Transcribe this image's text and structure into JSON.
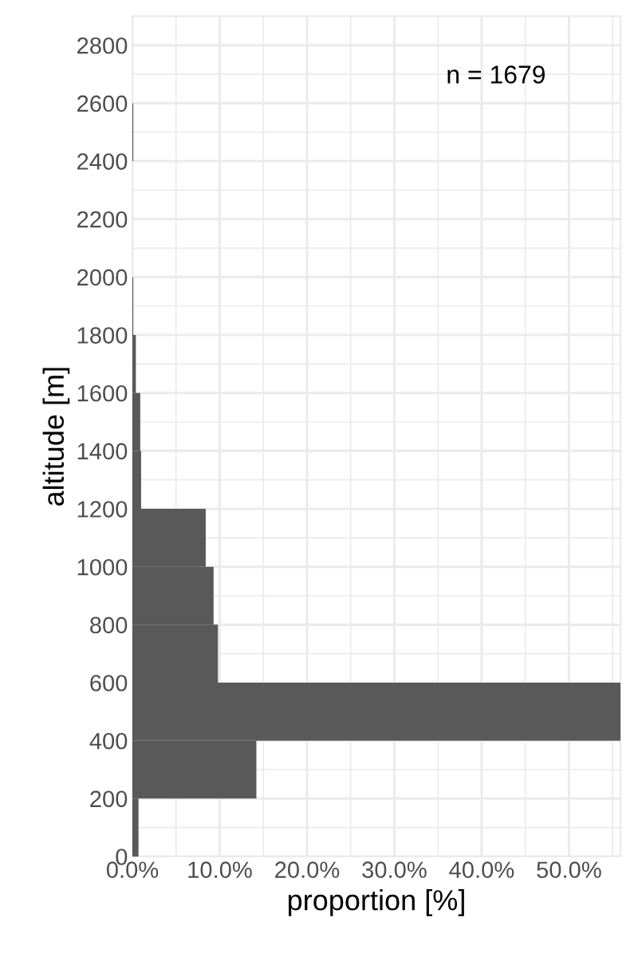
{
  "chart_data": {
    "type": "histogram",
    "orientation": "horizontal",
    "xlabel": "proportion [%]",
    "ylabel": "altitude [m]",
    "bins": [
      0,
      200,
      400,
      600,
      800,
      1000,
      1200,
      1400,
      1600,
      1800,
      2000,
      2200,
      2400,
      2600
    ],
    "values": [
      0.7,
      14.2,
      55.9,
      9.8,
      9.3,
      8.4,
      1.0,
      0.9,
      0.4,
      0.1,
      0,
      0,
      0.1
    ],
    "color": "#595959",
    "xlim": [
      0,
      55.9
    ],
    "xticks": [
      {
        "value": 0,
        "label": "0.0%"
      },
      {
        "value": 10,
        "label": "10.0%"
      },
      {
        "value": 20,
        "label": "20.0%"
      },
      {
        "value": 30,
        "label": "30.0%"
      },
      {
        "value": 40,
        "label": "40.0%"
      },
      {
        "value": 50,
        "label": "50.0%"
      }
    ],
    "ylim": [
      0,
      2900
    ],
    "yticks": [
      0,
      200,
      400,
      600,
      800,
      1000,
      1200,
      1400,
      1600,
      1800,
      2000,
      2200,
      2400,
      2600,
      2800
    ],
    "grid": true,
    "annotations": [
      "n = 1679"
    ]
  }
}
